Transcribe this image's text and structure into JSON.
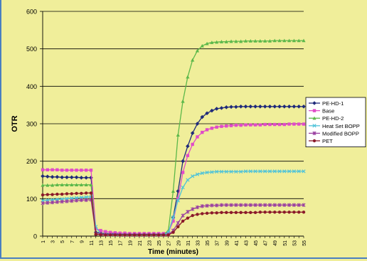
{
  "chart_data": {
    "type": "line",
    "title": "",
    "xlabel": "Time (minutes)",
    "ylabel": "OTR",
    "ylim": [
      0,
      600
    ],
    "yticks": [
      0,
      100,
      200,
      300,
      400,
      500,
      600
    ],
    "x": [
      1,
      2,
      3,
      4,
      5,
      6,
      7,
      8,
      9,
      10,
      11,
      12,
      13,
      14,
      15,
      16,
      17,
      18,
      19,
      20,
      21,
      22,
      23,
      24,
      25,
      26,
      27,
      28,
      29,
      30,
      31,
      32,
      33,
      34,
      35,
      36,
      37,
      38,
      39,
      40,
      41,
      42,
      43,
      44,
      45,
      46,
      47,
      48,
      49,
      50,
      51,
      52,
      53,
      54,
      55
    ],
    "xtick_labels": [
      "1",
      "3",
      "5",
      "7",
      "9",
      "11",
      "13",
      "15",
      "17",
      "19",
      "21",
      "23",
      "25",
      "27",
      "29",
      "31",
      "33",
      "35",
      "37",
      "39",
      "41",
      "43",
      "45",
      "47",
      "49",
      "51",
      "53",
      "55"
    ],
    "grid": "horizontal",
    "legend_position": "right",
    "series": [
      {
        "name": "PE-HD-1",
        "color": "#1f2a7a",
        "marker": "diamond",
        "values": [
          160,
          159,
          158,
          158,
          157,
          157,
          157,
          157,
          156,
          156,
          156,
          10,
          8,
          7,
          6,
          6,
          5,
          5,
          5,
          5,
          5,
          5,
          5,
          5,
          5,
          5,
          8,
          50,
          120,
          200,
          240,
          275,
          300,
          318,
          328,
          335,
          340,
          342,
          344,
          345,
          345,
          346,
          346,
          346,
          346,
          346,
          346,
          346,
          346,
          346,
          346,
          346,
          346,
          346,
          346
        ]
      },
      {
        "name": "Base",
        "color": "#e04bc8",
        "marker": "square",
        "values": [
          177,
          177,
          177,
          177,
          176,
          176,
          176,
          176,
          176,
          176,
          176,
          20,
          15,
          12,
          10,
          9,
          8,
          8,
          7,
          7,
          7,
          7,
          7,
          7,
          7,
          7,
          10,
          40,
          100,
          170,
          215,
          245,
          265,
          277,
          284,
          288,
          291,
          293,
          294,
          295,
          296,
          296,
          297,
          297,
          297,
          297,
          298,
          298,
          298,
          298,
          298,
          299,
          299,
          299,
          299
        ]
      },
      {
        "name": "PE-HD-2",
        "color": "#5cb84a",
        "marker": "triangle",
        "values": [
          136,
          136,
          136,
          137,
          137,
          137,
          137,
          137,
          137,
          137,
          137,
          6,
          5,
          5,
          4,
          4,
          4,
          4,
          4,
          4,
          4,
          4,
          4,
          4,
          4,
          4,
          15,
          120,
          270,
          360,
          425,
          470,
          495,
          508,
          514,
          517,
          518,
          519,
          519,
          520,
          520,
          520,
          521,
          521,
          521,
          521,
          521,
          521,
          522,
          522,
          522,
          522,
          522,
          522,
          522
        ]
      },
      {
        "name": "Heat Set BOPP",
        "color": "#4fc3d9",
        "marker": "x",
        "values": [
          95,
          96,
          97,
          98,
          99,
          100,
          101,
          102,
          103,
          104,
          105,
          25,
          5,
          4,
          3,
          3,
          3,
          3,
          3,
          3,
          3,
          3,
          3,
          3,
          3,
          3,
          10,
          50,
          95,
          130,
          150,
          160,
          165,
          168,
          170,
          171,
          172,
          172,
          172,
          172,
          172,
          172,
          173,
          173,
          173,
          173,
          173,
          173,
          173,
          173,
          173,
          173,
          173,
          173,
          173
        ]
      },
      {
        "name": "Modified BOPP",
        "color": "#9a3fa0",
        "marker": "asterisk",
        "values": [
          88,
          89,
          90,
          91,
          92,
          93,
          94,
          95,
          96,
          96,
          97,
          6,
          5,
          4,
          4,
          4,
          3,
          3,
          3,
          3,
          3,
          3,
          3,
          3,
          3,
          3,
          4,
          15,
          35,
          55,
          65,
          72,
          77,
          80,
          81,
          82,
          82,
          83,
          83,
          83,
          83,
          83,
          83,
          83,
          83,
          83,
          83,
          83,
          83,
          83,
          83,
          83,
          83,
          83,
          83
        ]
      },
      {
        "name": "PET",
        "color": "#8b1a2a",
        "marker": "circle",
        "values": [
          110,
          111,
          111,
          112,
          112,
          113,
          113,
          114,
          114,
          115,
          115,
          5,
          4,
          3,
          3,
          3,
          3,
          3,
          3,
          3,
          3,
          3,
          3,
          3,
          3,
          3,
          3,
          10,
          25,
          40,
          48,
          55,
          58,
          60,
          61,
          62,
          62,
          63,
          63,
          63,
          63,
          63,
          63,
          63,
          63,
          64,
          64,
          64,
          64,
          64,
          64,
          64,
          64,
          64,
          64
        ]
      }
    ]
  }
}
